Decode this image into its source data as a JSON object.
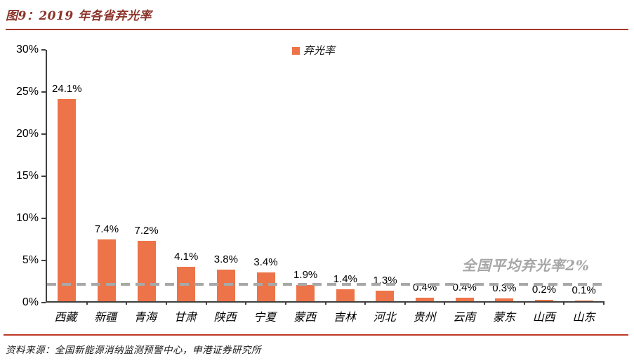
{
  "title": "图9：2019 年各省弃光率",
  "legend": {
    "label": "弃光率"
  },
  "annotation": "全国平均弃光率2%",
  "source": "资料来源：全国新能源消纳监测预警中心，申港证券研究所",
  "colors": {
    "bar": "#ED7348",
    "title_text": "#8C352C",
    "title_rule": "#A43A2C",
    "footer_rule": "#BE3A27",
    "dashed_line": "#A8A8A8",
    "annotation_gray": "#A6A6A6",
    "axis": "#404040"
  },
  "y_axis": {
    "ticks": [
      "30%",
      "25%",
      "20%",
      "15%",
      "10%",
      "5%",
      "0%"
    ]
  },
  "chart_data": {
    "type": "bar",
    "title": "2019 年各省弃光率",
    "categories": [
      "西藏",
      "新疆",
      "青海",
      "甘肃",
      "陕西",
      "宁夏",
      "蒙西",
      "吉林",
      "河北",
      "贵州",
      "云南",
      "蒙东",
      "山西",
      "山东"
    ],
    "values": [
      24.1,
      7.4,
      7.2,
      4.1,
      3.8,
      3.4,
      1.9,
      1.4,
      1.3,
      0.4,
      0.4,
      0.3,
      0.2,
      0.1
    ],
    "data_labels": [
      "24.1%",
      "7.4%",
      "7.2%",
      "4.1%",
      "3.8%",
      "3.4%",
      "1.9%",
      "1.4%",
      "1.3%",
      "0.4%",
      "0.4%",
      "0.3%",
      "0.2%",
      "0.1%"
    ],
    "xlabel": "",
    "ylabel": "弃光率",
    "ylim": [
      0,
      30
    ],
    "y_tick_interval": 5,
    "grid": false,
    "legend_position": "top-center",
    "reference_line": {
      "value": 2,
      "label": "全国平均弃光率2%"
    }
  }
}
